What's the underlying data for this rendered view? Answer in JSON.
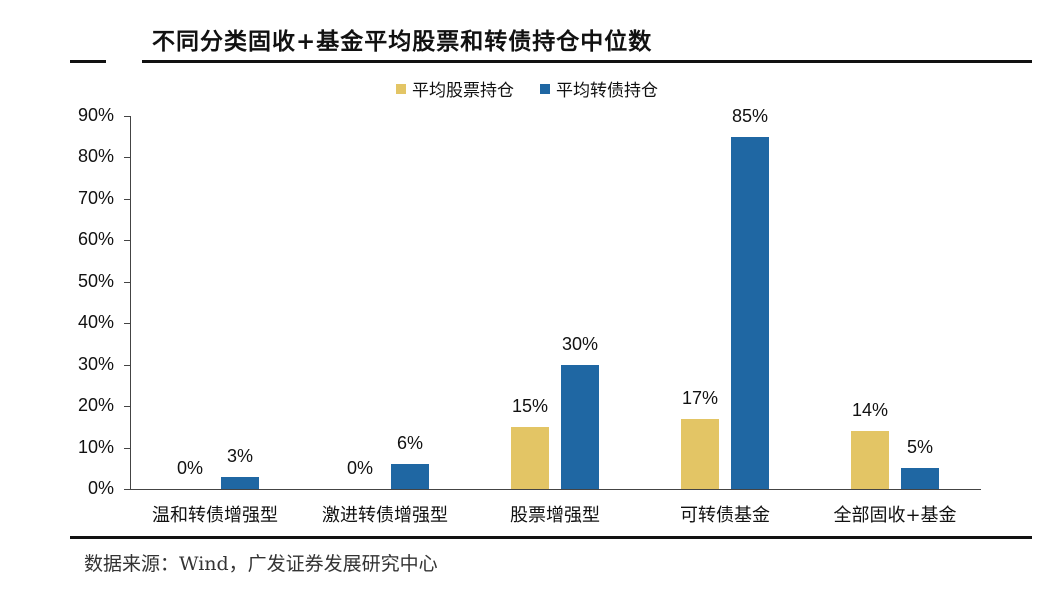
{
  "title": "不同分类固收+基金平均股票和转债持仓中位数",
  "legend": [
    {
      "label": "平均股票持仓",
      "color": "#E3C565"
    },
    {
      "label": "平均转债持仓",
      "color": "#1F67A3"
    }
  ],
  "source": "数据来源：Wind，广发证券发展研究中心",
  "chart_data": {
    "type": "bar",
    "title": "不同分类固收+基金平均股票和转债持仓中位数",
    "xlabel": "",
    "ylabel": "",
    "ylim": [
      0,
      90
    ],
    "yticks": [
      "0%",
      "10%",
      "20%",
      "30%",
      "40%",
      "50%",
      "60%",
      "70%",
      "80%",
      "90%"
    ],
    "grid": false,
    "legend_position": "top",
    "categories": [
      "温和转债增强型",
      "激进转债增强型",
      "股票增强型",
      "可转债基金",
      "全部固收+基金"
    ],
    "series": [
      {
        "name": "平均股票持仓",
        "color": "#E3C565",
        "values": [
          0,
          0,
          15,
          17,
          14
        ],
        "labels": [
          "0%",
          "0%",
          "15%",
          "17%",
          "14%"
        ]
      },
      {
        "name": "平均转债持仓",
        "color": "#1F67A3",
        "values": [
          3,
          6,
          30,
          85,
          5
        ],
        "labels": [
          "3%",
          "6%",
          "30%",
          "85%",
          "5%"
        ]
      }
    ]
  }
}
